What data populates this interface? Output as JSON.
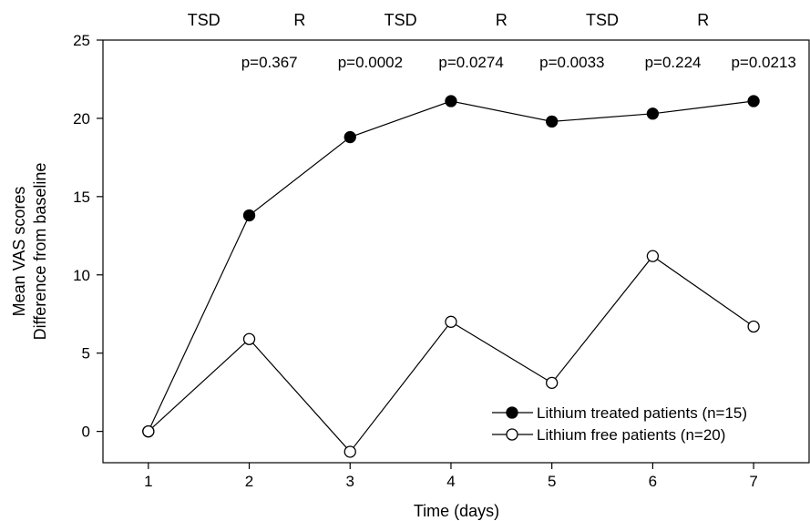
{
  "chart_data": {
    "type": "line",
    "title": "",
    "xlabel": "Time (days)",
    "ylabel": [
      "Mean VAS scores",
      "Difference from baseline"
    ],
    "x": [
      1,
      2,
      3,
      4,
      5,
      6,
      7
    ],
    "xlim": [
      0.55,
      7.55
    ],
    "ylim": [
      -2,
      25
    ],
    "xticks": [
      1,
      2,
      3,
      4,
      5,
      6,
      7
    ],
    "yticks": [
      0,
      5,
      10,
      15,
      20,
      25
    ],
    "grid": false,
    "legend_position": "bottom-right",
    "series": [
      {
        "name": "Lithium treated patients (n=15)",
        "marker": "filled-circle",
        "values": [
          0,
          13.8,
          18.8,
          21.1,
          19.8,
          20.3,
          21.1
        ]
      },
      {
        "name": "Lithium free patients (n=20)",
        "marker": "open-circle",
        "values": [
          0,
          5.9,
          -1.3,
          7.0,
          3.1,
          11.2,
          6.7
        ]
      }
    ],
    "phase_labels": [
      {
        "x": 1.55,
        "text": "TSD"
      },
      {
        "x": 2.5,
        "text": "R"
      },
      {
        "x": 3.5,
        "text": "TSD"
      },
      {
        "x": 4.5,
        "text": "R"
      },
      {
        "x": 5.5,
        "text": "TSD"
      },
      {
        "x": 6.5,
        "text": "R"
      }
    ],
    "p_values": [
      {
        "x": 2.2,
        "text": "p=0.367"
      },
      {
        "x": 3.2,
        "text": "p=0.0002"
      },
      {
        "x": 4.2,
        "text": "p=0.0274"
      },
      {
        "x": 5.2,
        "text": "p=0.0033"
      },
      {
        "x": 6.2,
        "text": "p=0.224"
      },
      {
        "x": 7.1,
        "text": "p=0.0213"
      }
    ]
  }
}
